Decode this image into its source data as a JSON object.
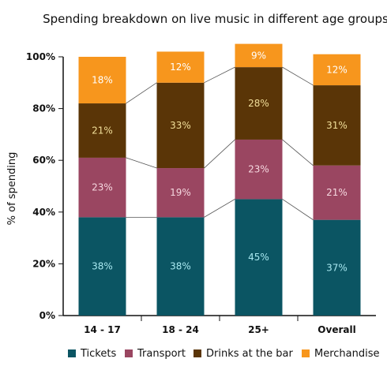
{
  "chart_data": {
    "type": "bar",
    "stacked": true,
    "title": "Spending breakdown on live music in different age groups",
    "xlabel": "",
    "ylabel": "% of spending",
    "ylim": [
      0,
      100
    ],
    "yticks": [
      "0%",
      "20%",
      "40%",
      "60%",
      "80%",
      "100%"
    ],
    "categories": [
      "14 - 17",
      "18 - 24",
      "25+",
      "Overall"
    ],
    "series": [
      {
        "name": "Tickets",
        "color": "#0b5563",
        "label_color": "#a8e8f0",
        "values": [
          38,
          38,
          45,
          37
        ],
        "labels": [
          "38%",
          "38%",
          "45%",
          "37%"
        ]
      },
      {
        "name": "Transport",
        "color": "#9a4661",
        "label_color": "#f5d7df",
        "values": [
          23,
          19,
          23,
          21
        ],
        "labels": [
          "23%",
          "19%",
          "23%",
          "21%"
        ]
      },
      {
        "name": "Drinks at the bar",
        "color": "#5a3507",
        "label_color": "#f2df9a",
        "values": [
          21,
          33,
          28,
          31
        ],
        "labels": [
          "21%",
          "33%",
          "28%",
          "31%"
        ]
      },
      {
        "name": "Merchandise",
        "color": "#f7961d",
        "label_color": "#ffffff",
        "values": [
          18,
          12,
          9,
          12
        ],
        "labels": [
          "18%",
          "12%",
          "9%",
          "12%"
        ]
      }
    ],
    "connector_lines": true,
    "grid": false,
    "legend_position": "bottom"
  }
}
